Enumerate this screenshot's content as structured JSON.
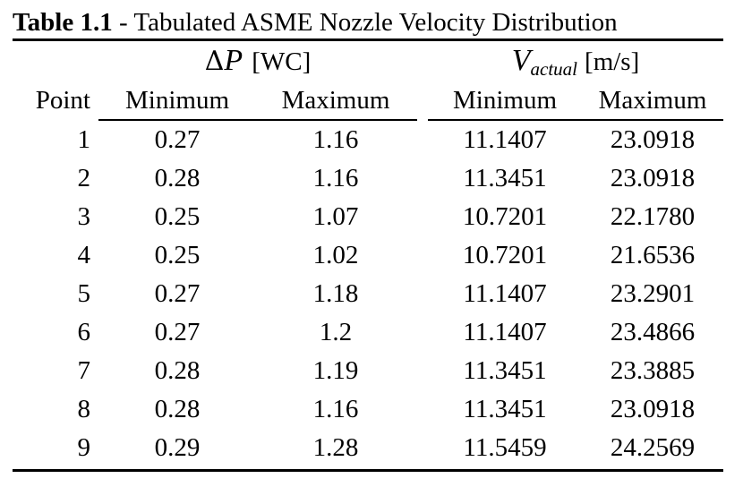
{
  "caption": {
    "label": "Table 1.1",
    "text": " - Tabulated ASME Nozzle Velocity Distribution"
  },
  "groups": {
    "dp": {
      "symbol_delta": "Δ",
      "symbol_var": "P",
      "unit": "[WC]"
    },
    "v": {
      "symbol_var": "V",
      "symbol_sub": "actual",
      "unit": "[m/s]"
    }
  },
  "headers": [
    "Point",
    "Minimum",
    "Maximum",
    "Minimum",
    "Maximum"
  ],
  "rows": [
    [
      "1",
      "0.27",
      "1.16",
      "11.1407",
      "23.0918"
    ],
    [
      "2",
      "0.28",
      "1.16",
      "11.3451",
      "23.0918"
    ],
    [
      "3",
      "0.25",
      "1.07",
      "10.7201",
      "22.1780"
    ],
    [
      "4",
      "0.25",
      "1.02",
      "10.7201",
      "21.6536"
    ],
    [
      "5",
      "0.27",
      "1.18",
      "11.1407",
      "23.2901"
    ],
    [
      "6",
      "0.27",
      "1.2",
      "11.1407",
      "23.4866"
    ],
    [
      "7",
      "0.28",
      "1.19",
      "11.3451",
      "23.3885"
    ],
    [
      "8",
      "0.28",
      "1.16",
      "11.3451",
      "23.0918"
    ],
    [
      "9",
      "0.29",
      "1.28",
      "11.5459",
      "24.2569"
    ]
  ]
}
